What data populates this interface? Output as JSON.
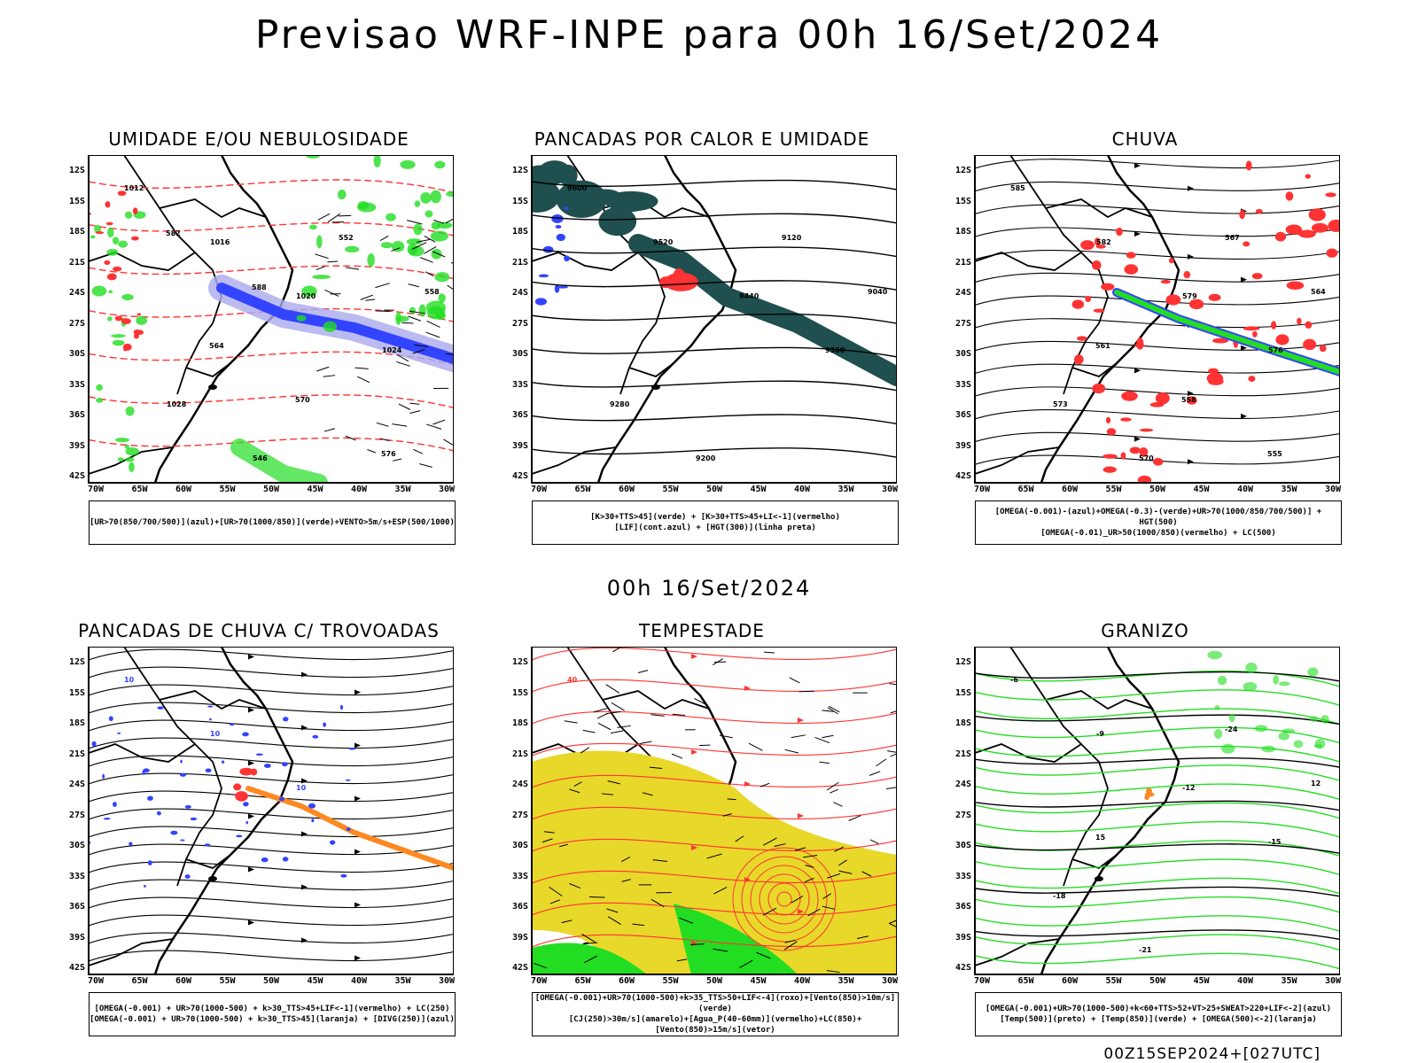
{
  "header": {
    "title": "Previsao WRF-INPE  para 00h 16/Set/2024",
    "subtitle": "00h 16/Set/2024",
    "footer": "00Z15SEP2024+[027UTC]"
  },
  "axes": {
    "lat_labels": [
      "12S",
      "15S",
      "18S",
      "21S",
      "24S",
      "27S",
      "30S",
      "33S",
      "36S",
      "39S",
      "42S"
    ],
    "lon_labels": [
      "70W",
      "65W",
      "60W",
      "55W",
      "50W",
      "45W",
      "40W",
      "35W",
      "30W"
    ]
  },
  "colors": {
    "green": "#22dd22",
    "blue": "#3344ff",
    "lavender": "#aaaaee",
    "red": "#ff3333",
    "orange": "#ff8822",
    "yellow": "#e8d82a",
    "dark_teal": "#1f4f4f",
    "black": "#000000"
  },
  "panels": [
    {
      "title": "UMIDADE E/OU NEBULOSIDADE",
      "legend": [
        "[UR>70(850/700/500)](azul)+[UR>70(1000/850)](verde)+VENTO>5m/s+ESP(500/1000)"
      ],
      "contour_labels": [
        "1012",
        "1016",
        "1020",
        "1024",
        "1028",
        "546",
        "552",
        "558",
        "564",
        "570",
        "576",
        "582",
        "588"
      ]
    },
    {
      "title": "PANCADAS POR CALOR E UMIDADE",
      "legend": [
        "[K>30+TTS>45](verde) + [K>30+TTS>45+LI<-1](vermelho)",
        "[LIF](cont.azul) + [HGT(300)](linha preta)"
      ],
      "contour_labels": [
        "9600",
        "9520",
        "9440",
        "9360",
        "9280",
        "9200",
        "9120",
        "9040"
      ]
    },
    {
      "title": "CHUVA",
      "legend": [
        "[OMEGA(-0.001)-(azul)+OMEGA(-0.3)-(verde)+UR>70(1000/850/700/500)] + HGT(500)",
        "[OMEGA(-0.01)_UR>50(1000/850)(vermelho) + LC(500)"
      ],
      "contour_labels": [
        "585",
        "582",
        "579",
        "576",
        "573",
        "570",
        "567",
        "564",
        "561",
        "558",
        "555"
      ]
    },
    {
      "title": "PANCADAS DE CHUVA C/ TROVOADAS",
      "legend": [
        "[OMEGA(-0.001) + UR>70(1000-500) + k>30_TTS>45+LIF<-1](vermelho) + LC(250)",
        "[OMEGA(-0.001) + UR>70(1000-500) + k>30_TTS>45](laranja) + [DIVG(250)](azul)"
      ],
      "contour_labels": [
        "10",
        "10",
        "10"
      ]
    },
    {
      "title": "TEMPESTADE",
      "legend": [
        "[OMEGA(-0.001)+UR>70(1000-500)+k>35_TTS>50+LIF<-4](roxo)+[Vento(850)>10m/s](verde)",
        "[CJ(250)>30m/s](amarelo)+[Agua_P(40-60mm)](vermelho)+LC(850)+[Vento(850)>15m/s](vetor)"
      ],
      "contour_labels": [
        "40"
      ]
    },
    {
      "title": "GRANIZO",
      "legend": [
        "[OMEGA(-0.001)+UR>70(1000-500)+k<60+TTS>52+VT>25+SWEAT>220+LIF<-2](azul)",
        "[Temp(500)](preto) + [Temp(850)](verde) + [OMEGA(500)<-2](laranja)"
      ],
      "contour_labels": [
        "-6",
        "-9",
        "-12",
        "-15",
        "-18",
        "-21",
        "-24",
        "12",
        "15"
      ]
    }
  ]
}
